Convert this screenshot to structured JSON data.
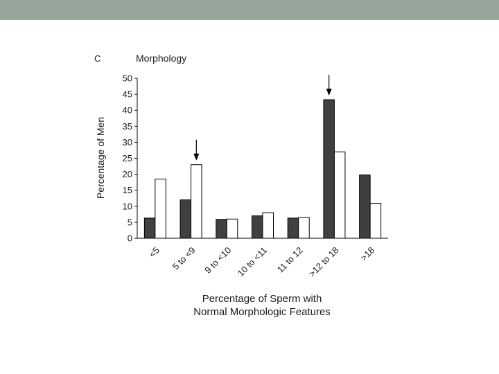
{
  "slide": {
    "header_bar_color": "#97a69a"
  },
  "chart_data": {
    "type": "bar",
    "panel_label": "C",
    "title": "Morphology",
    "ylabel": "Percentage of Men",
    "xlabel_lines": [
      "Percentage of Sperm with",
      "Normal Morphologic Features"
    ],
    "ylim": [
      0,
      50
    ],
    "yticks": [
      0,
      5,
      10,
      15,
      20,
      25,
      30,
      35,
      40,
      45,
      50
    ],
    "categories": [
      "<5",
      "5 to <9",
      "9 to <10",
      "10 to <11",
      "11 to 12",
      ">12 to 18",
      ">18"
    ],
    "series": [
      {
        "values": [
          6.3,
          12,
          5.9,
          7,
          6.3,
          43.3,
          19.8
        ],
        "color": "#404040"
      },
      {
        "values": [
          18.5,
          23,
          6,
          8,
          6.5,
          27,
          10.9
        ],
        "color": "#ffffff"
      }
    ],
    "arrows_above_category": [
      "5 to <9",
      ">12 to 18"
    ],
    "grid": false,
    "legend": "none"
  }
}
